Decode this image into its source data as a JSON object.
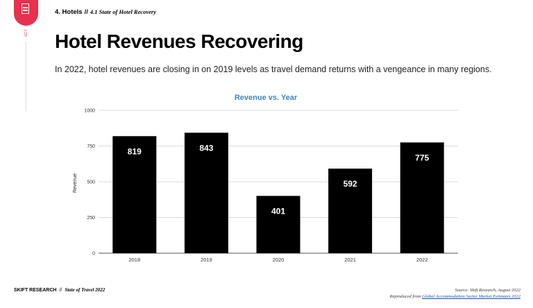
{
  "header": {
    "section": "4. Hotels",
    "separator": "//",
    "subsection": "4.1 State of Hotel Recovery",
    "page_number": "1/29"
  },
  "title": "Hotel Revenues Recovering",
  "subtitle": "In 2022, hotel revenues are closing in on 2019 levels as travel demand returns with a vengeance in many regions.",
  "chart_data": {
    "type": "bar",
    "title": "Revenue vs. Year",
    "xlabel": "",
    "ylabel": "Revenue",
    "categories": [
      "2018",
      "2019",
      "2020",
      "2021",
      "2022"
    ],
    "values": [
      819,
      843,
      401,
      592,
      775
    ],
    "ylim": [
      0,
      1000
    ],
    "yticks": [
      0,
      250,
      500,
      750,
      1000
    ],
    "grid": true,
    "legend": "none",
    "bar_color": "#000000",
    "label_color": "#ffffff",
    "title_color": "#3d85c6"
  },
  "footer": {
    "brand": "SKIFT RESEARCH",
    "separator": "//",
    "publication": "State of Travel 2022",
    "source_line": "Source: Skift Research, August 2022",
    "reproduced_prefix": "Reproduced from ",
    "reproduced_link": "Global Accommodation Sector Market Estimates 2022"
  },
  "colors": {
    "accent": "#e8314d",
    "link": "#1a4fa0"
  }
}
